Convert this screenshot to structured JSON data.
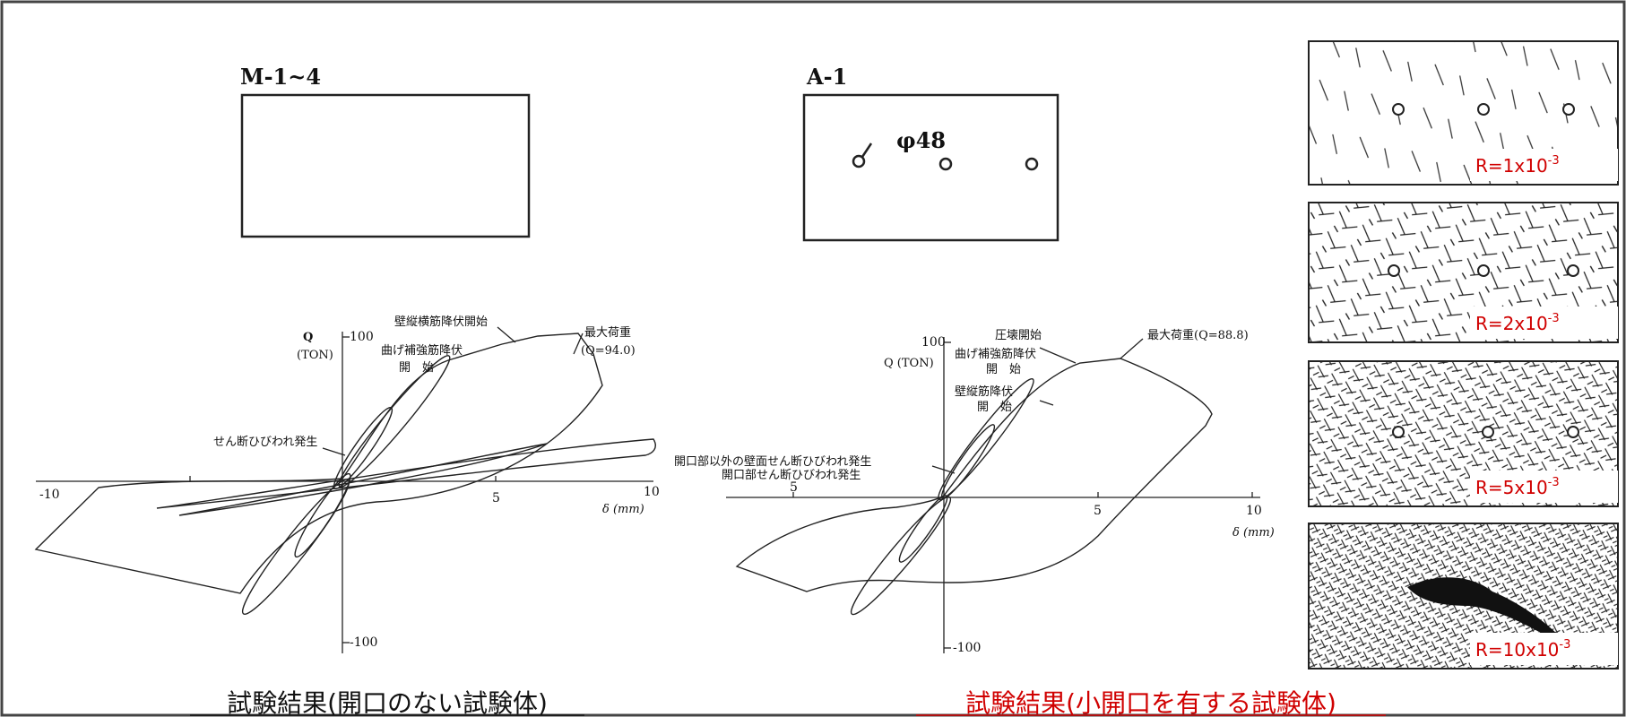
{
  "left_panel": {
    "specimen_label": "M-1~4",
    "plot": {
      "y_label": "Q",
      "y_unit": "(TON)",
      "y_ticks": [
        "100",
        "-100"
      ],
      "x_ticks": [
        "-10",
        "5",
        "10"
      ],
      "x_label": "δ (mm)",
      "annotations": [
        "壁縦横筋降伏開始",
        "最大荷重",
        "(Q=94.0)",
        "曲げ補強筋降伏",
        "開　始",
        "せん断ひびわれ発生"
      ]
    },
    "caption": "試験結果(開口のない試験体)"
  },
  "middle_panel": {
    "specimen_label": "A-1",
    "opening_label": "φ48",
    "plot": {
      "y_label": "Q (TON)",
      "y_ticks": [
        "100",
        "-100"
      ],
      "x_ticks": [
        "5",
        "5",
        "10"
      ],
      "x_label": "δ (mm)",
      "annotations": [
        "圧壊開始",
        "最大荷重(Q=88.8)",
        "曲げ補強筋降伏",
        "開　始",
        "壁縦筋降伏",
        "開　始",
        "開口部以外の壁面せん断ひびわれ発生",
        "開口部せん断ひびわれ発生"
      ]
    },
    "caption": "試験結果(小開口を有する試験体)"
  },
  "crack_patterns": [
    {
      "base": "R=1x10",
      "exp": "-3"
    },
    {
      "base": "R=2x10",
      "exp": "-3"
    },
    {
      "base": "R=5x10",
      "exp": "-3"
    },
    {
      "base": "R=10x10",
      "exp": "-3"
    }
  ]
}
